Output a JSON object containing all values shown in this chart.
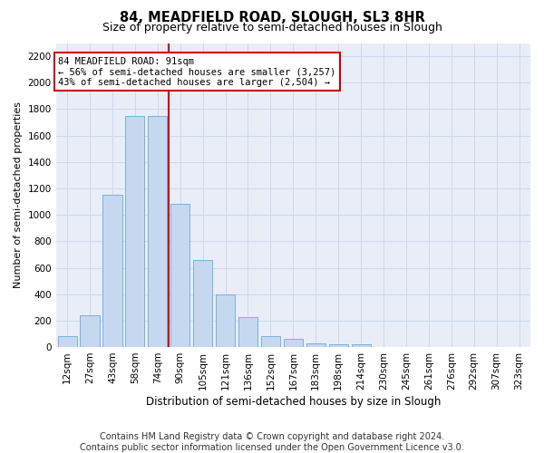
{
  "title": "84, MEADFIELD ROAD, SLOUGH, SL3 8HR",
  "subtitle": "Size of property relative to semi-detached houses in Slough",
  "xlabel": "Distribution of semi-detached houses by size in Slough",
  "ylabel": "Number of semi-detached properties",
  "footnote1": "Contains HM Land Registry data © Crown copyright and database right 2024.",
  "footnote2": "Contains public sector information licensed under the Open Government Licence v3.0.",
  "bin_labels": [
    "12sqm",
    "27sqm",
    "43sqm",
    "58sqm",
    "74sqm",
    "90sqm",
    "105sqm",
    "121sqm",
    "136sqm",
    "152sqm",
    "167sqm",
    "183sqm",
    "198sqm",
    "214sqm",
    "230sqm",
    "245sqm",
    "261sqm",
    "276sqm",
    "292sqm",
    "307sqm",
    "323sqm"
  ],
  "bar_values": [
    80,
    240,
    1150,
    1750,
    1750,
    1080,
    660,
    400,
    230,
    80,
    60,
    30,
    20,
    20,
    0,
    0,
    0,
    0,
    0,
    0,
    0
  ],
  "bar_color": "#c5d8f0",
  "bar_edgecolor": "#6aaad4",
  "grid_color": "#cdd8ea",
  "bg_color": "#e8edf8",
  "vline_color": "#cc0000",
  "vline_x": 4.5,
  "annotation_line1": "84 MEADFIELD ROAD: 91sqm",
  "annotation_line2": "← 56% of semi-detached houses are smaller (3,257)",
  "annotation_line3": "43% of semi-detached houses are larger (2,504) →",
  "annotation_box_facecolor": "#ffffff",
  "annotation_box_edgecolor": "#cc0000",
  "ylim": [
    0,
    2300
  ],
  "yticks": [
    0,
    200,
    400,
    600,
    800,
    1000,
    1200,
    1400,
    1600,
    1800,
    2000,
    2200
  ],
  "title_fontsize": 10.5,
  "subtitle_fontsize": 9,
  "ylabel_fontsize": 8,
  "xlabel_fontsize": 8.5,
  "tick_fontsize": 7.5,
  "annot_fontsize": 7.5,
  "footnote_fontsize": 7
}
